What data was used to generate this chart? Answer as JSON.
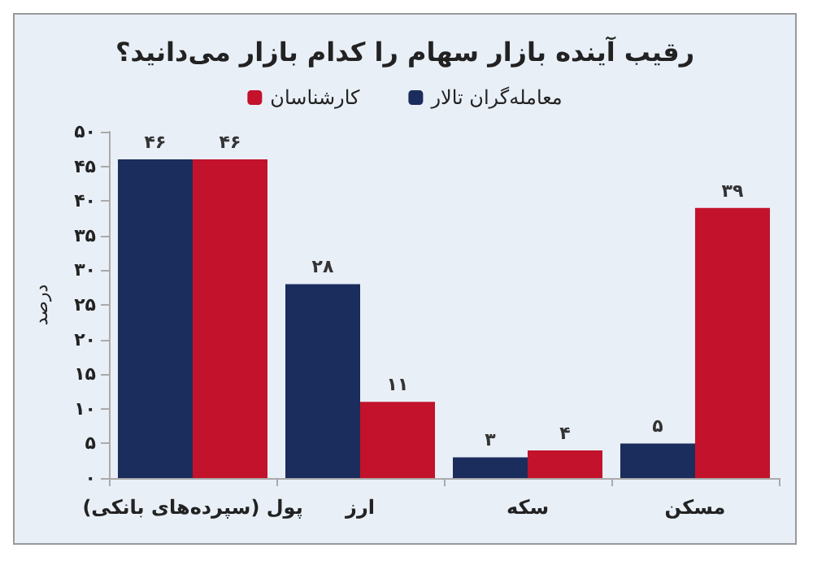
{
  "chart_data": {
    "type": "bar",
    "title": "رقیب آینده بازار سهام را کدام بازار می‌دانید؟",
    "ylabel": "درصد",
    "categories": [
      "پول (سپرده‌های بانکی)",
      "ارز",
      "سکه",
      "مسکن"
    ],
    "series": [
      {
        "name": "معامله‌گران تالار",
        "color": "#1b2d5c",
        "values": [
          46,
          28,
          3,
          5
        ],
        "value_labels": [
          "۴۶",
          "۲۸",
          "۳",
          "۵"
        ]
      },
      {
        "name": "کارشناسان",
        "color": "#c3122b",
        "values": [
          46,
          11,
          4,
          39
        ],
        "value_labels": [
          "۴۶",
          "۱۱",
          "۴",
          "۳۹"
        ]
      }
    ],
    "ylim": [
      0,
      50
    ],
    "yticks": [
      {
        "value": 0,
        "label": "۰"
      },
      {
        "value": 5,
        "label": "۵"
      },
      {
        "value": 10,
        "label": "۱۰"
      },
      {
        "value": 15,
        "label": "۱۵"
      },
      {
        "value": 20,
        "label": "۲۰"
      },
      {
        "value": 25,
        "label": "۲۵"
      },
      {
        "value": 30,
        "label": "۳۰"
      },
      {
        "value": 35,
        "label": "۳۵"
      },
      {
        "value": 40,
        "label": "۴۰"
      },
      {
        "value": 45,
        "label": "۴۵"
      },
      {
        "value": 50,
        "label": "۵۰"
      }
    ],
    "grid": false,
    "legend": "top"
  }
}
